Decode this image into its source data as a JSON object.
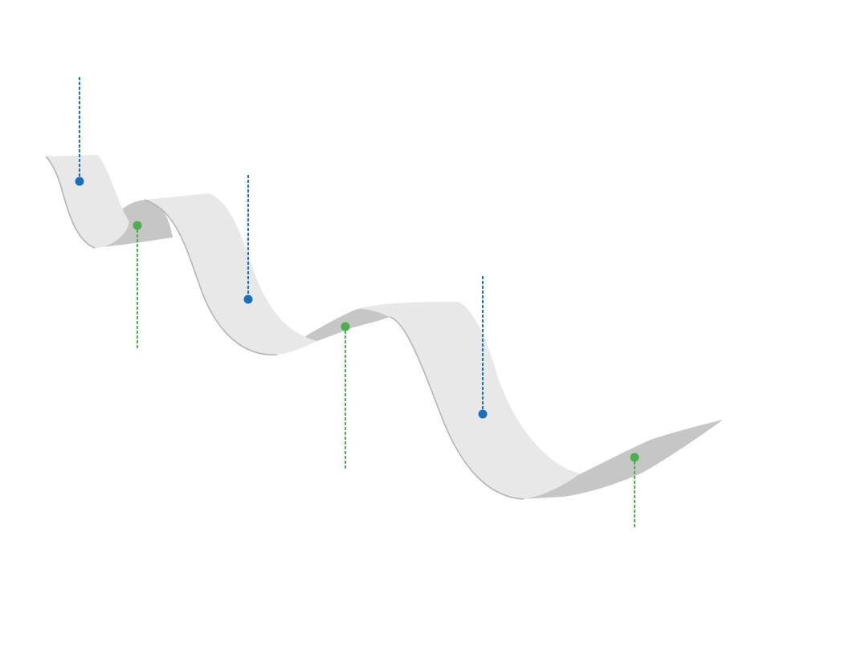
{
  "colors": {
    "ribbon_front": "#e8e8e8",
    "ribbon_back": "#c6c6c6",
    "ribbon_edge": "#b5b5b5",
    "marker_top": "#1a6fbd",
    "marker_bottom": "#4cae4c",
    "background": "#ffffff"
  },
  "markers": [
    {
      "id": "marker-1",
      "position": "above",
      "color_key": "marker_top"
    },
    {
      "id": "marker-2",
      "position": "below",
      "color_key": "marker_bottom"
    },
    {
      "id": "marker-3",
      "position": "above",
      "color_key": "marker_top"
    },
    {
      "id": "marker-4",
      "position": "below",
      "color_key": "marker_bottom"
    },
    {
      "id": "marker-5",
      "position": "above",
      "color_key": "marker_top"
    },
    {
      "id": "marker-6",
      "position": "below",
      "color_key": "marker_bottom"
    }
  ]
}
